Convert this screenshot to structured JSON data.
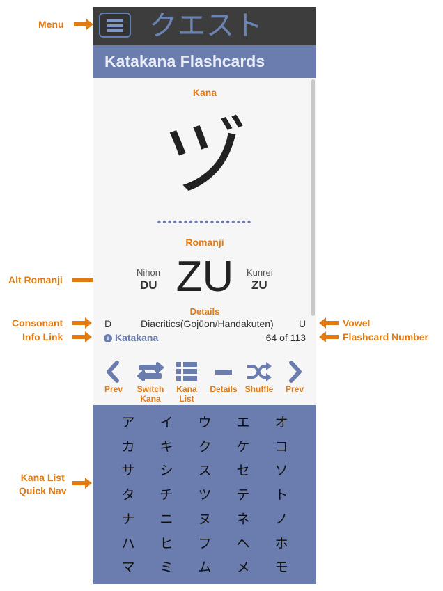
{
  "app_title": "クエスト",
  "screen_title": "Katakana Flashcards",
  "kana_label": "Kana",
  "kana": "ヅ",
  "dots": "••••••••••••••••••",
  "romanji_label": "Romanji",
  "romanji": "ZU",
  "nihon_label": "Nihon",
  "nihon_value": "DU",
  "kunrei_label": "Kunrei",
  "kunrei_value": "ZU",
  "details_label": "Details",
  "consonant": "D",
  "diacritics": "Diacritics(Gojūon/Handakuten)",
  "vowel": "U",
  "info_link": "Katakana",
  "counter": "64 of 113",
  "nav": [
    {
      "line1": "Prev",
      "line2": ""
    },
    {
      "line1": "Switch",
      "line2": "Kana"
    },
    {
      "line1": "Kana",
      "line2": "List"
    },
    {
      "line1": "Details",
      "line2": ""
    },
    {
      "line1": "Shuffle",
      "line2": ""
    },
    {
      "line1": "Prev",
      "line2": ""
    }
  ],
  "kana_grid": [
    [
      "ア",
      "イ",
      "ウ",
      "エ",
      "オ"
    ],
    [
      "カ",
      "キ",
      "ク",
      "ケ",
      "コ"
    ],
    [
      "サ",
      "シ",
      "ス",
      "セ",
      "ソ"
    ],
    [
      "タ",
      "チ",
      "ツ",
      "テ",
      "ト"
    ],
    [
      "ナ",
      "ニ",
      "ヌ",
      "ネ",
      "ノ"
    ],
    [
      "ハ",
      "ヒ",
      "フ",
      "ヘ",
      "ホ"
    ],
    [
      "マ",
      "ミ",
      "ム",
      "メ",
      "モ"
    ]
  ],
  "annotations": {
    "menu": "Menu",
    "alt_romanji": "Alt Romanji",
    "consonant": "Consonant",
    "info_link": "Info Link",
    "vowel": "Vowel",
    "flashcard_number": "Flashcard Number",
    "kana_list_1": "Kana List",
    "kana_list_2": "Quick Nav"
  },
  "colors": {
    "accent": "#6a7dae",
    "annotation": "#e27a14",
    "topbar": "#3d3d3d"
  }
}
